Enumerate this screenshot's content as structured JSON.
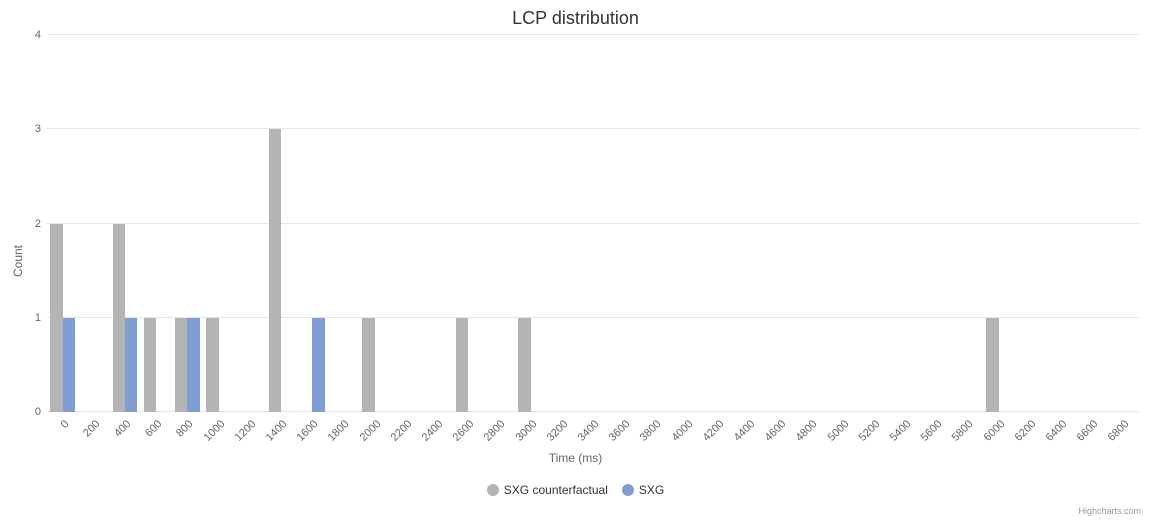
{
  "chart": {
    "type": "bar",
    "title": "LCP distribution",
    "title_fontsize": 18,
    "title_color": "#333333",
    "background_color": "#ffffff",
    "plot_background": "#ffffff",
    "grid_color": "#e6e6e6",
    "axis_line_color": "#ccd6eb",
    "x_axis": {
      "title": "Time (ms)",
      "title_fontsize": 12,
      "label_fontsize": 11,
      "label_color": "#666666",
      "label_rotation": -45,
      "categories": [
        "0",
        "200",
        "400",
        "600",
        "800",
        "1000",
        "1200",
        "1400",
        "1600",
        "1800",
        "2000",
        "2200",
        "2400",
        "2600",
        "2800",
        "3000",
        "3200",
        "3400",
        "3600",
        "3800",
        "4000",
        "4200",
        "4400",
        "4600",
        "4800",
        "5000",
        "5200",
        "5400",
        "5600",
        "5800",
        "6000",
        "6200",
        "6400",
        "6600",
        "6800"
      ]
    },
    "y_axis": {
      "title": "Count",
      "title_fontsize": 12,
      "label_fontsize": 11,
      "label_color": "#666666",
      "min": 0,
      "max": 4,
      "tick_step": 1,
      "ticks": [
        0,
        1,
        2,
        3,
        4
      ]
    },
    "series": [
      {
        "name": "SXG counterfactual",
        "color": "#b4b4b4",
        "data": [
          2,
          0,
          2,
          1,
          1,
          1,
          0,
          3,
          0,
          0,
          1,
          0,
          0,
          1,
          0,
          1,
          0,
          0,
          0,
          0,
          0,
          0,
          0,
          0,
          0,
          0,
          0,
          0,
          0,
          0,
          1,
          0,
          0,
          0,
          0
        ]
      },
      {
        "name": "SXG",
        "color": "#7f9fd4",
        "data": [
          1,
          0,
          1,
          0,
          1,
          0,
          0,
          0,
          1,
          0,
          0,
          0,
          0,
          0,
          0,
          0,
          0,
          0,
          0,
          0,
          0,
          0,
          0,
          0,
          0,
          0,
          0,
          0,
          0,
          0,
          0,
          0,
          0,
          0,
          0
        ]
      }
    ],
    "legend": {
      "fontsize": 12,
      "position": "bottom-center",
      "swatch_shape": "circle"
    },
    "credits": {
      "text": "Highcharts.com",
      "fontsize": 9,
      "color": "#999999"
    }
  }
}
